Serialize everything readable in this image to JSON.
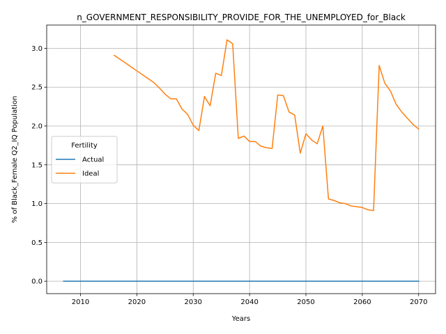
{
  "chart_data": {
    "type": "line",
    "title": "n_GOVERNMENT_RESPONSIBILITY_PROVIDE_FOR_THE_UNEMPLOYED_for_Black",
    "xlabel": "Years",
    "ylabel": "% of Black_Female Q2_IQ Population",
    "xlim": [
      2004,
      2073
    ],
    "ylim": [
      -0.16,
      3.3
    ],
    "xticks": [
      2010,
      2020,
      2030,
      2040,
      2050,
      2060,
      2070
    ],
    "yticks": [
      0.0,
      0.5,
      1.0,
      1.5,
      2.0,
      2.5,
      3.0
    ],
    "xtick_labels": [
      "2010",
      "2020",
      "2030",
      "2040",
      "2050",
      "2060",
      "2070"
    ],
    "ytick_labels": [
      "0.0",
      "0.5",
      "1.0",
      "1.5",
      "2.0",
      "2.5",
      "3.0"
    ],
    "grid": true,
    "legend": {
      "title": "Fertility",
      "placement": "center-left"
    },
    "series": [
      {
        "name": "Actual",
        "color": "#1f77b4",
        "x": [
          2007,
          2070
        ],
        "y": [
          0.0,
          0.0
        ]
      },
      {
        "name": "Ideal",
        "color": "#ff7f0e",
        "x": [
          2016,
          2017,
          2018,
          2019,
          2020,
          2021,
          2022,
          2023,
          2024,
          2025,
          2026,
          2027,
          2028,
          2029,
          2030,
          2031,
          2032,
          2033,
          2034,
          2035,
          2036,
          2037,
          2038,
          2039,
          2040,
          2041,
          2042,
          2043,
          2044,
          2045,
          2046,
          2047,
          2048,
          2049,
          2050,
          2051,
          2052,
          2053,
          2054,
          2055,
          2056,
          2057,
          2058,
          2059,
          2060,
          2061,
          2062,
          2063,
          2064,
          2065,
          2066,
          2067,
          2068,
          2069,
          2070
        ],
        "y": [
          2.91,
          2.86,
          2.81,
          2.76,
          2.71,
          2.66,
          2.61,
          2.56,
          2.49,
          2.41,
          2.35,
          2.35,
          2.22,
          2.15,
          2.01,
          1.94,
          2.38,
          2.26,
          2.68,
          2.65,
          3.11,
          3.06,
          1.84,
          1.87,
          1.8,
          1.8,
          1.74,
          1.72,
          1.71,
          2.4,
          2.39,
          2.18,
          2.14,
          1.65,
          1.9,
          1.82,
          1.77,
          2.0,
          1.06,
          1.04,
          1.01,
          1.0,
          0.97,
          0.96,
          0.95,
          0.92,
          0.91,
          2.78,
          2.55,
          2.45,
          2.28,
          2.18,
          2.1,
          2.02,
          1.96
        ]
      }
    ]
  }
}
